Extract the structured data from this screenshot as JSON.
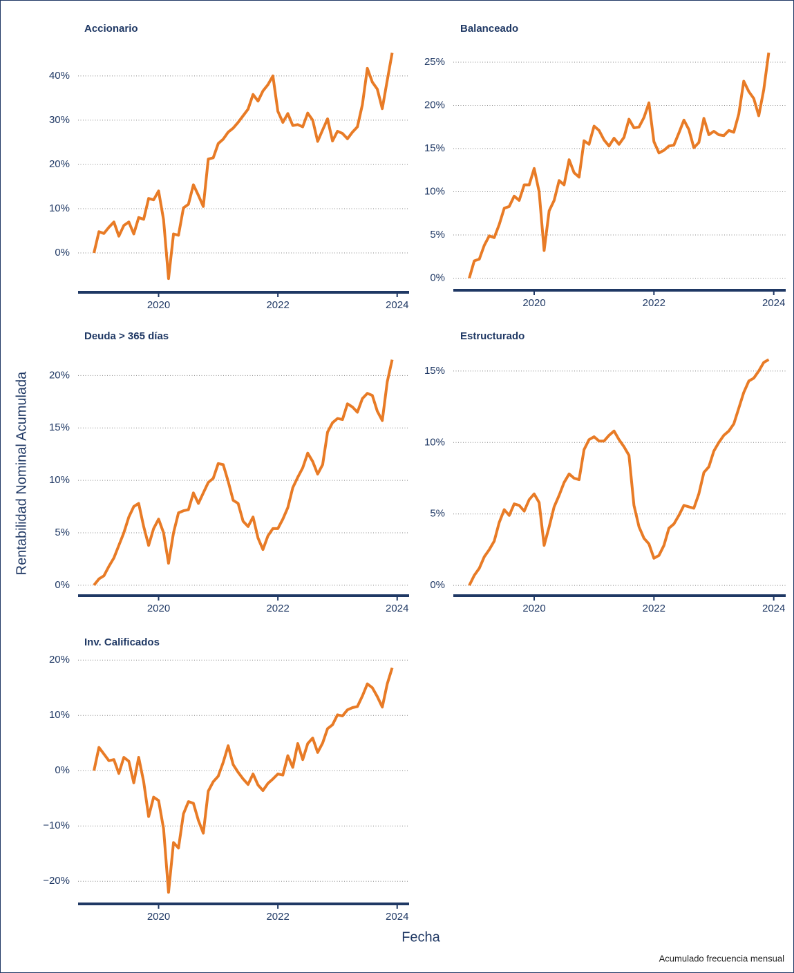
{
  "ylabel": "Rentabilidad Nominal Acumulada",
  "xlabel": "Fecha",
  "caption": "Acumulado frecuencia mensual",
  "chart_data": [
    {
      "type": "line",
      "title": "Accionario",
      "x": [
        "2018-12",
        "2019-01",
        "2019-02",
        "2019-03",
        "2019-04",
        "2019-05",
        "2019-06",
        "2019-07",
        "2019-08",
        "2019-09",
        "2019-10",
        "2019-11",
        "2019-12",
        "2020-01",
        "2020-02",
        "2020-03",
        "2020-04",
        "2020-05",
        "2020-06",
        "2020-07",
        "2020-08",
        "2020-09",
        "2020-10",
        "2020-11",
        "2020-12",
        "2021-01",
        "2021-02",
        "2021-03",
        "2021-04",
        "2021-05",
        "2021-06",
        "2021-07",
        "2021-08",
        "2021-09",
        "2021-10",
        "2021-11",
        "2021-12",
        "2022-01",
        "2022-02",
        "2022-03",
        "2022-04",
        "2022-05",
        "2022-06",
        "2022-07",
        "2022-08",
        "2022-09",
        "2022-10",
        "2022-11",
        "2022-12",
        "2023-01",
        "2023-02",
        "2023-03",
        "2023-04",
        "2023-05",
        "2023-06",
        "2023-07",
        "2023-08",
        "2023-09",
        "2023-10",
        "2023-11",
        "2023-12"
      ],
      "series": [
        {
          "color": "#e87b26",
          "values": [
            0,
            4.8,
            4.4,
            5.8,
            7.0,
            3.8,
            6.2,
            7.0,
            4.3,
            8.0,
            7.6,
            12.3,
            12.0,
            14.0,
            7.5,
            -5.8,
            4.3,
            4.0,
            10.2,
            11.0,
            15.4,
            13.0,
            10.5,
            21.2,
            21.5,
            24.7,
            25.7,
            27.3,
            28.2,
            29.5,
            31.0,
            32.5,
            35.8,
            34.3,
            36.6,
            38.0,
            40.0,
            32.0,
            29.5,
            31.5,
            28.8,
            29.0,
            28.5,
            31.6,
            30.0,
            25.2,
            27.8,
            30.3,
            25.3,
            27.5,
            27.0,
            25.8,
            27.3,
            28.5,
            33.5,
            41.7,
            38.6,
            37.0,
            32.6,
            39.0,
            45.2
          ]
        }
      ],
      "xlim": [
        2018.65,
        2024.2
      ],
      "xticks": [
        2020,
        2022,
        2024
      ],
      "ylim": [
        -8.9,
        47
      ],
      "yticks": [
        {
          "value": 0,
          "label": "0%"
        },
        {
          "value": 10,
          "label": "10%"
        },
        {
          "value": 20,
          "label": "20%"
        },
        {
          "value": 30,
          "label": "30%"
        },
        {
          "value": 40,
          "label": "40%"
        }
      ],
      "grid": true
    },
    {
      "type": "line",
      "title": "Balanceado",
      "x": [
        "2018-12",
        "2019-01",
        "2019-02",
        "2019-03",
        "2019-04",
        "2019-05",
        "2019-06",
        "2019-07",
        "2019-08",
        "2019-09",
        "2019-10",
        "2019-11",
        "2019-12",
        "2020-01",
        "2020-02",
        "2020-03",
        "2020-04",
        "2020-05",
        "2020-06",
        "2020-07",
        "2020-08",
        "2020-09",
        "2020-10",
        "2020-11",
        "2020-12",
        "2021-01",
        "2021-02",
        "2021-03",
        "2021-04",
        "2021-05",
        "2021-06",
        "2021-07",
        "2021-08",
        "2021-09",
        "2021-10",
        "2021-11",
        "2021-12",
        "2022-01",
        "2022-02",
        "2022-03",
        "2022-04",
        "2022-05",
        "2022-06",
        "2022-07",
        "2022-08",
        "2022-09",
        "2022-10",
        "2022-11",
        "2022-12",
        "2023-01",
        "2023-02",
        "2023-03",
        "2023-04",
        "2023-05",
        "2023-06",
        "2023-07",
        "2023-08",
        "2023-09",
        "2023-10",
        "2023-11",
        "2023-12"
      ],
      "series": [
        {
          "color": "#e87b26",
          "values": [
            0,
            2.0,
            2.2,
            3.8,
            4.9,
            4.7,
            6.2,
            8.1,
            8.3,
            9.5,
            9.0,
            10.8,
            10.8,
            12.7,
            10.0,
            3.2,
            7.8,
            9.0,
            11.3,
            10.8,
            13.7,
            12.2,
            11.7,
            15.9,
            15.5,
            17.6,
            17.1,
            16.0,
            15.3,
            16.2,
            15.5,
            16.3,
            18.4,
            17.4,
            17.5,
            18.6,
            20.3,
            15.8,
            14.5,
            14.8,
            15.3,
            15.4,
            16.8,
            18.3,
            17.2,
            15.1,
            15.7,
            18.5,
            16.6,
            17.0,
            16.6,
            16.5,
            17.1,
            16.9,
            19.0,
            22.8,
            21.6,
            20.8,
            18.8,
            21.8,
            26.1
          ]
        }
      ],
      "xlim": [
        2018.65,
        2024.2
      ],
      "xticks": [
        2020,
        2022,
        2024
      ],
      "ylim": [
        -1.4,
        27
      ],
      "yticks": [
        {
          "value": 0,
          "label": "0%"
        },
        {
          "value": 5,
          "label": "5%"
        },
        {
          "value": 10,
          "label": "10%"
        },
        {
          "value": 15,
          "label": "15%"
        },
        {
          "value": 20,
          "label": "20%"
        },
        {
          "value": 25,
          "label": "25%"
        }
      ],
      "grid": true
    },
    {
      "type": "line",
      "title": "Deuda > 365 días",
      "x": [
        "2018-12",
        "2019-01",
        "2019-02",
        "2019-03",
        "2019-04",
        "2019-05",
        "2019-06",
        "2019-07",
        "2019-08",
        "2019-09",
        "2019-10",
        "2019-11",
        "2019-12",
        "2020-01",
        "2020-02",
        "2020-03",
        "2020-04",
        "2020-05",
        "2020-06",
        "2020-07",
        "2020-08",
        "2020-09",
        "2020-10",
        "2020-11",
        "2020-12",
        "2021-01",
        "2021-02",
        "2021-03",
        "2021-04",
        "2021-05",
        "2021-06",
        "2021-07",
        "2021-08",
        "2021-09",
        "2021-10",
        "2021-11",
        "2021-12",
        "2022-01",
        "2022-02",
        "2022-03",
        "2022-04",
        "2022-05",
        "2022-06",
        "2022-07",
        "2022-08",
        "2022-09",
        "2022-10",
        "2022-11",
        "2022-12",
        "2023-01",
        "2023-02",
        "2023-03",
        "2023-04",
        "2023-05",
        "2023-06",
        "2023-07",
        "2023-08",
        "2023-09",
        "2023-10",
        "2023-11",
        "2023-12"
      ],
      "series": [
        {
          "color": "#e87b26",
          "values": [
            0,
            0.6,
            0.9,
            1.8,
            2.6,
            3.8,
            5.0,
            6.5,
            7.5,
            7.8,
            5.6,
            3.8,
            5.4,
            6.3,
            5.0,
            2.1,
            5.0,
            6.9,
            7.1,
            7.2,
            8.8,
            7.8,
            8.8,
            9.8,
            10.2,
            11.6,
            11.5,
            9.9,
            8.1,
            7.8,
            6.1,
            5.6,
            6.5,
            4.5,
            3.4,
            4.7,
            5.4,
            5.4,
            6.3,
            7.4,
            9.3,
            10.3,
            11.2,
            12.6,
            11.8,
            10.6,
            11.5,
            14.6,
            15.5,
            15.9,
            15.8,
            17.3,
            17.0,
            16.5,
            17.8,
            18.3,
            18.1,
            16.6,
            15.7,
            19.4,
            21.5
          ]
        }
      ],
      "xlim": [
        2018.65,
        2024.2
      ],
      "xticks": [
        2020,
        2022,
        2024
      ],
      "ylim": [
        -1.0,
        22.2
      ],
      "yticks": [
        {
          "value": 0,
          "label": "0%"
        },
        {
          "value": 5,
          "label": "5%"
        },
        {
          "value": 10,
          "label": "10%"
        },
        {
          "value": 15,
          "label": "15%"
        },
        {
          "value": 20,
          "label": "20%"
        }
      ],
      "grid": true
    },
    {
      "type": "line",
      "title": "Estructurado",
      "x": [
        "2018-12",
        "2019-01",
        "2019-02",
        "2019-03",
        "2019-04",
        "2019-05",
        "2019-06",
        "2019-07",
        "2019-08",
        "2019-09",
        "2019-10",
        "2019-11",
        "2019-12",
        "2020-01",
        "2020-02",
        "2020-03",
        "2020-04",
        "2020-05",
        "2020-06",
        "2020-07",
        "2020-08",
        "2020-09",
        "2020-10",
        "2020-11",
        "2020-12",
        "2021-01",
        "2021-02",
        "2021-03",
        "2021-04",
        "2021-05",
        "2021-06",
        "2021-07",
        "2021-08",
        "2021-09",
        "2021-10",
        "2021-11",
        "2021-12",
        "2022-01",
        "2022-02",
        "2022-03",
        "2022-04",
        "2022-05",
        "2022-06",
        "2022-07",
        "2022-08",
        "2022-09",
        "2022-10",
        "2022-11",
        "2022-12",
        "2023-01",
        "2023-02",
        "2023-03",
        "2023-04",
        "2023-05",
        "2023-06",
        "2023-07",
        "2023-08",
        "2023-09",
        "2023-10",
        "2023-11",
        "2023-12"
      ],
      "series": [
        {
          "color": "#e87b26",
          "values": [
            0,
            0.7,
            1.2,
            2.0,
            2.5,
            3.1,
            4.4,
            5.3,
            4.9,
            5.7,
            5.6,
            5.2,
            6.0,
            6.4,
            5.8,
            2.8,
            4.1,
            5.5,
            6.3,
            7.2,
            7.8,
            7.5,
            7.4,
            9.5,
            10.2,
            10.4,
            10.1,
            10.1,
            10.5,
            10.8,
            10.2,
            9.7,
            9.1,
            5.6,
            4.1,
            3.3,
            2.9,
            1.9,
            2.1,
            2.8,
            4.0,
            4.3,
            4.9,
            5.6,
            5.5,
            5.4,
            6.4,
            7.9,
            8.3,
            9.4,
            10.0,
            10.5,
            10.8,
            11.3,
            12.4,
            13.5,
            14.3,
            14.5,
            15.0,
            15.6,
            15.8
          ]
        }
      ],
      "xlim": [
        2018.65,
        2024.2
      ],
      "xticks": [
        2020,
        2022,
        2024
      ],
      "ylim": [
        -0.72,
        16.3
      ],
      "yticks": [
        {
          "value": 0,
          "label": "0%"
        },
        {
          "value": 5,
          "label": "5%"
        },
        {
          "value": 10,
          "label": "10%"
        },
        {
          "value": 15,
          "label": "15%"
        }
      ],
      "grid": true
    },
    {
      "type": "line",
      "title": "Inv. Calificados",
      "x": [
        "2018-12",
        "2019-01",
        "2019-02",
        "2019-03",
        "2019-04",
        "2019-05",
        "2019-06",
        "2019-07",
        "2019-08",
        "2019-09",
        "2019-10",
        "2019-11",
        "2019-12",
        "2020-01",
        "2020-02",
        "2020-03",
        "2020-04",
        "2020-05",
        "2020-06",
        "2020-07",
        "2020-08",
        "2020-09",
        "2020-10",
        "2020-11",
        "2020-12",
        "2021-01",
        "2021-02",
        "2021-03",
        "2021-04",
        "2021-05",
        "2021-06",
        "2021-07",
        "2021-08",
        "2021-09",
        "2021-10",
        "2021-11",
        "2021-12",
        "2022-01",
        "2022-02",
        "2022-03",
        "2022-04",
        "2022-05",
        "2022-06",
        "2022-07",
        "2022-08",
        "2022-09",
        "2022-10",
        "2022-11",
        "2022-12",
        "2023-01",
        "2023-02",
        "2023-03",
        "2023-04",
        "2023-05",
        "2023-06",
        "2023-07",
        "2023-08",
        "2023-09",
        "2023-10",
        "2023-11",
        "2023-12"
      ],
      "series": [
        {
          "color": "#e87b26",
          "values": [
            0,
            4.2,
            3.0,
            1.8,
            2.0,
            -0.5,
            2.4,
            1.7,
            -2.2,
            2.4,
            -2.0,
            -8.3,
            -4.8,
            -5.4,
            -10.5,
            -22.0,
            -13.0,
            -14.0,
            -7.8,
            -5.6,
            -5.9,
            -9.0,
            -11.3,
            -3.7,
            -2.0,
            -1.0,
            1.5,
            4.5,
            1.1,
            -0.3,
            -1.5,
            -2.5,
            -0.6,
            -2.6,
            -3.6,
            -2.3,
            -1.5,
            -0.6,
            -0.8,
            2.7,
            0.6,
            4.9,
            2.0,
            4.9,
            5.9,
            3.3,
            5.0,
            7.6,
            8.3,
            10.1,
            9.9,
            11.0,
            11.4,
            11.6,
            13.5,
            15.7,
            15.0,
            13.4,
            11.5,
            15.7,
            18.6
          ]
        }
      ],
      "xlim": [
        2018.65,
        2024.2
      ],
      "xticks": [
        2020,
        2022,
        2024
      ],
      "ylim": [
        -24.1,
        21.9
      ],
      "yticks": [
        {
          "value": -20,
          "label": "−20%"
        },
        {
          "value": -10,
          "label": "−10%"
        },
        {
          "value": 0,
          "label": "0%"
        },
        {
          "value": 10,
          "label": "10%"
        },
        {
          "value": 20,
          "label": "20%"
        }
      ],
      "grid": true
    }
  ]
}
